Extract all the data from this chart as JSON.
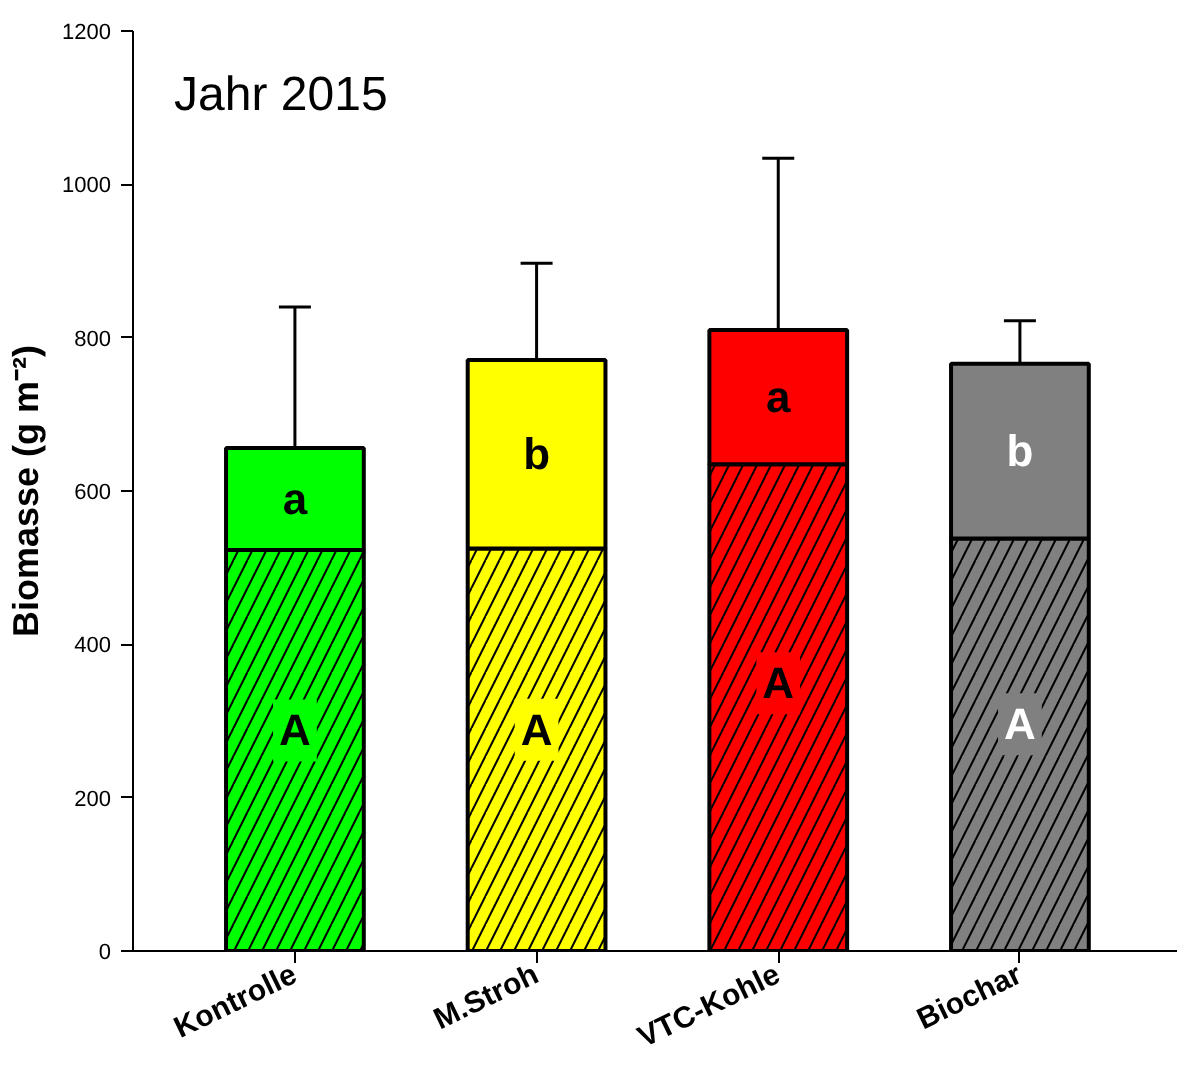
{
  "chart_data": {
    "type": "bar",
    "title": "Jahr 2015",
    "ylabel": "Biomasse (g m⁻²)",
    "stacked": true,
    "categories": [
      "Kontrolle",
      "M.Stroh",
      "VTC-Kohle",
      "Biochar"
    ],
    "series": [
      {
        "colors": [
          "#00ff00",
          "#ffff00",
          "#ff0000",
          "#808080"
        ],
        "values": [
          523,
          525,
          635,
          538
        ]
      },
      {
        "colors": [
          "#00ff00",
          "#ffff00",
          "#ff0000",
          "#808080"
        ],
        "values": [
          133,
          246,
          175,
          228
        ],
        "errors": [
          [
            656,
            840
          ],
          [
            771,
            897
          ],
          [
            810,
            1034
          ],
          [
            766,
            822
          ]
        ]
      }
    ],
    "ylim": [
      0,
      1200
    ],
    "yticks": [
      0,
      200,
      400,
      600,
      800,
      1000,
      1200
    ],
    "grid": false,
    "annotations": [
      "A",
      "A",
      "A",
      "A",
      "a",
      "b",
      "a",
      "b"
    ]
  }
}
